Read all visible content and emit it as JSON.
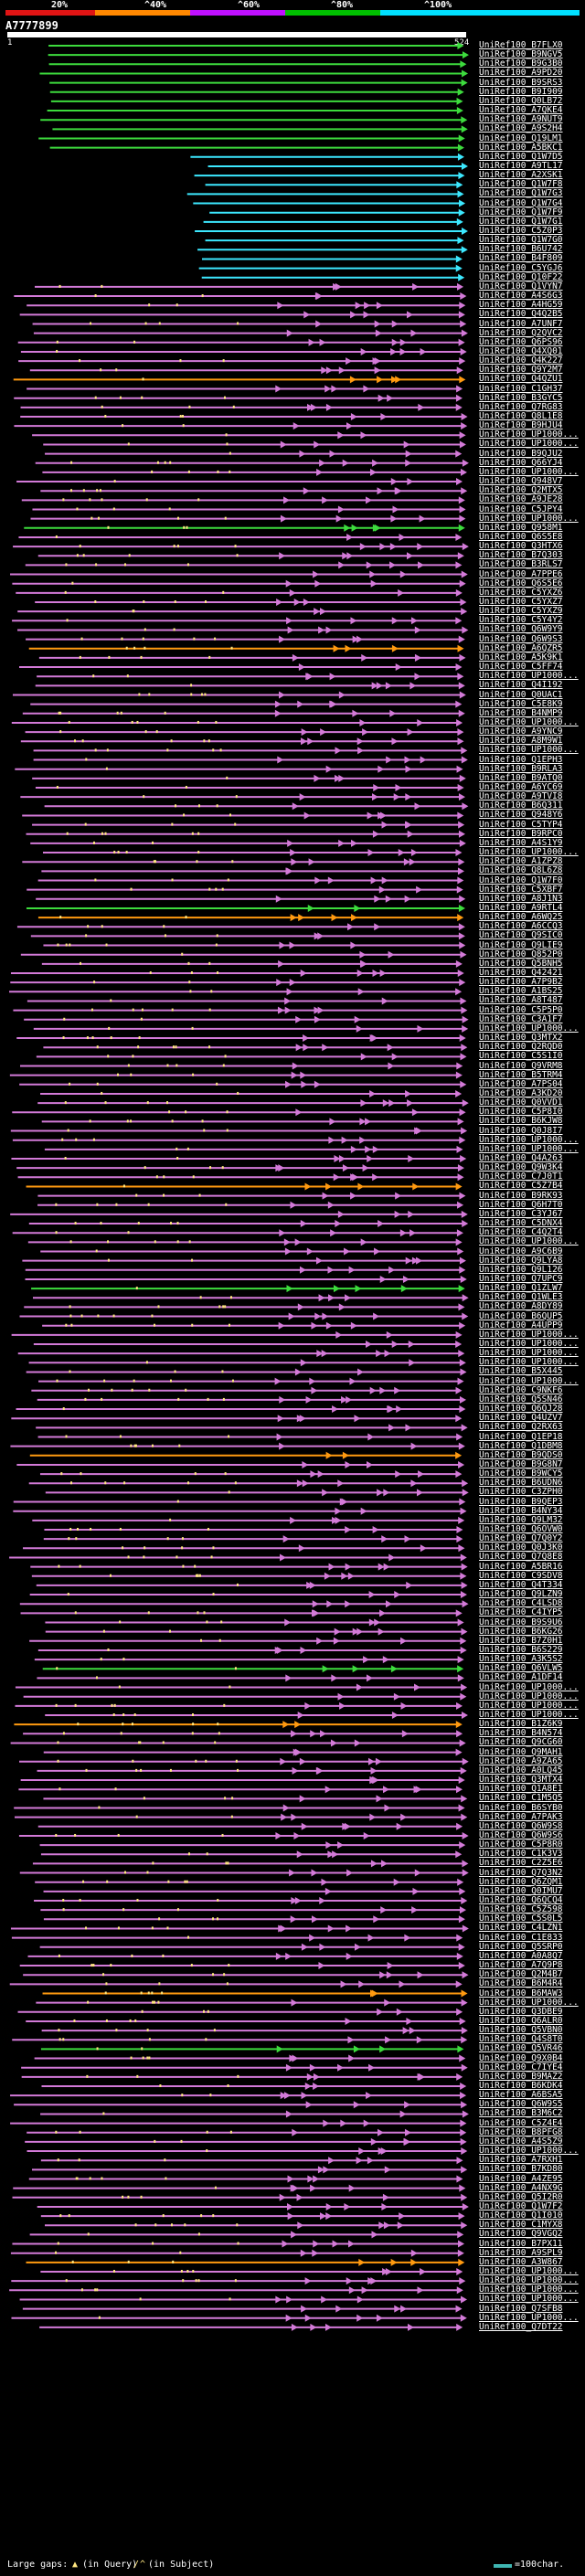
{
  "legend": {
    "percent_labels": [
      "20%",
      "^40%",
      "^60%",
      "^80%",
      "^100%"
    ],
    "colors": [
      "#e01414",
      "#ff8800",
      "#c010ff",
      "#00c000",
      "#00e0ff"
    ]
  },
  "query": {
    "id": "A7777899",
    "start": "1",
    "end": "524"
  },
  "hit_colors": {
    "cyan": "#3ce8ff",
    "green": "#3ddb3d",
    "purple": "#d37ad8",
    "orange": "#ff9a10",
    "dot": "#ffe680"
  },
  "hits": [
    "UniRef100_B7FLX0",
    "UniRef100_B9NGV5",
    "UniRef100_B9G3B0",
    "UniRef100_A9PD20",
    "UniRef100_B9SRS3",
    "UniRef100_B9I909",
    "UniRef100_Q0LB72",
    "UniRef100_A7QKE4",
    "UniRef100_A9NUT9",
    "UniRef100_A9S2H4",
    "UniRef100_Q19LM1",
    "UniRef100_A5BKC1",
    "UniRef100_Q1W7D5",
    "UniRef100_A9TL17",
    "UniRef100_A2XSK1",
    "UniRef100_Q1W7F8",
    "UniRef100_Q1W7G3",
    "UniRef100_Q1W7G4",
    "UniRef100_Q1W7F9",
    "UniRef100_Q1W7G1",
    "UniRef100_C5Z0P3",
    "UniRef100_Q1W7G0",
    "UniRef100_B6U742",
    "UniRef100_B4F809",
    "UniRef100_C5YGJ6",
    "UniRef100_Q10F22",
    "UniRef100_Q1VYN7",
    "UniRef100_A4S6G3",
    "UniRef100_A4HG59",
    "UniRef100_Q4Q2B5",
    "UniRef100_A7UNF7",
    "UniRef100_Q2QVC2",
    "UniRef100_Q6PS96",
    "UniRef100_Q4XQ01",
    "UniRef100_Q4K227",
    "UniRef100_Q9Y2M7",
    "UniRef100_Q4QZU1",
    "UniRef100_C1GH37",
    "UniRef100_B3GYC5",
    "UniRef100_Q7RG83",
    "UniRef100_Q8L1E8",
    "UniRef100_B9HJU4",
    "UniRef100_UP1000...",
    "UniRef100_UP1000...",
    "UniRef100_B9QJU2",
    "UniRef100_Q66YJ4",
    "UniRef100_UP1000...",
    "UniRef100_Q948V7",
    "UniRef100_Q2MTX5",
    "UniRef100_A9JE28",
    "UniRef100_C5JPY4",
    "UniRef100_UP1000...",
    "UniRef100_Q958M1",
    "UniRef100_Q6S5E8",
    "UniRef100_Q3HTX6",
    "UniRef100_B7Q303",
    "UniRef100_B3RLS7",
    "UniRef100_A7PPE6",
    "UniRef100_Q6S5E6",
    "UniRef100_C5YXZ6",
    "UniRef100_C5YXZ7",
    "UniRef100_C5YXZ9",
    "UniRef100_C5Y4Y2",
    "UniRef100_Q6W9Y9",
    "UniRef100_Q6W9S3",
    "UniRef100_A6QZR5",
    "UniRef100_A5K9K1",
    "UniRef100_C5FF74",
    "UniRef100_UP1000...",
    "UniRef100_Q4I192",
    "UniRef100_Q0UAC1",
    "UniRef100_C5E8K9",
    "UniRef100_B4NMP9",
    "UniRef100_UP1000...",
    "UniRef100_A9YNC9",
    "UniRef100_A8M9W1",
    "UniRef100_UP1000...",
    "UniRef100_Q1EPH3",
    "UniRef100_B9RLA3",
    "UniRef100_B9ATQ0",
    "UniRef100_A6YC69",
    "UniRef100_A9TVI8",
    "UniRef100_B6Q311",
    "UniRef100_Q948Y6",
    "UniRef100_C5TYP4",
    "UniRef100_B9RPC0",
    "UniRef100_A4S1Y9",
    "UniRef100_UP1000...",
    "UniRef100_A1ZPZ8",
    "UniRef100_Q8L6Z8",
    "UniRef100_Q1W7F0",
    "UniRef100_C5XBF7",
    "UniRef100_A8J1N3",
    "UniRef100_A9RTL4",
    "UniRef100_A6WQ25",
    "UniRef100_A6CCQ3",
    "UniRef100_Q9SIC0",
    "UniRef100_Q9LIE9",
    "UniRef100_Q852P0",
    "UniRef100_Q5BNH5",
    "UniRef100_Q42421",
    "UniRef100_A7P9B2",
    "UniRef100_A1BS25",
    "UniRef100_A8T487",
    "UniRef100_C5P5P0",
    "UniRef100_C3A1F7",
    "UniRef100_UP1000...",
    "UniRef100_Q3MTX2",
    "UniRef100_Q2RQD0",
    "UniRef100_C5S1I0",
    "UniRef100_Q9VRM8",
    "UniRef100_B5TRM4",
    "UniRef100_A7PS04",
    "UniRef100_A3KD20",
    "UniRef100_Q0VVD1",
    "UniRef100_C5P8I0",
    "UniRef100_B6KJW8",
    "UniRef100_Q0J8I7",
    "UniRef100_UP1000...",
    "UniRef100_UP1000...",
    "UniRef100_Q4A263",
    "UniRef100_Q9W3K4",
    "UniRef100_C7J0T1",
    "UniRef100_C5Z7B4",
    "UniRef100_B9RK93",
    "UniRef100_Q6H7T0",
    "UniRef100_C3YJ67",
    "UniRef100_C5DNX4",
    "UniRef100_C4Q2T4",
    "UniRef100_UP1000...",
    "UniRef100_A9C6B9",
    "UniRef100_Q9LYA8",
    "UniRef100_Q9L126",
    "UniRef100_Q7UPC9",
    "UniRef100_Q1ZLW7",
    "UniRef100_Q1WLE3",
    "UniRef100_A8DY89",
    "UniRef100_B6QUP5",
    "UniRef100_A4UPP9",
    "UniRef100_UP1000...",
    "UniRef100_UP1000...",
    "UniRef100_UP1000...",
    "UniRef100_UP1000...",
    "UniRef100_B5X445",
    "UniRef100_UP1000...",
    "UniRef100_C9NKF6",
    "UniRef100_Q5SN46",
    "UniRef100_Q6QJ28",
    "UniRef100_Q4UZV7",
    "UniRef100_Q2RX63",
    "UniRef100_Q1EP18",
    "UniRef100_Q1DBM8",
    "UniRef100_B9QDS0",
    "UniRef100_B9G8N7",
    "UniRef100_B9WCY5",
    "UniRef100_B6UDN6",
    "UniRef100_C3ZPH0",
    "UniRef100_B9QEP3",
    "UniRef100_B4NY34",
    "UniRef100_Q9LM32",
    "UniRef100_Q6OVW0",
    "UniRef100_Q7Q0Y2",
    "UniRef100_Q0J3K0",
    "UniRef100_Q7Q8E8",
    "UniRef100_A5BR16",
    "UniRef100_C9SDV8",
    "UniRef100_Q4T334",
    "UniRef100_Q9LZN9",
    "UniRef100_C4LSD8",
    "UniRef100_C4IYP5",
    "UniRef100_B9S9U6",
    "UniRef100_B6KG26",
    "UniRef100_B7Z0H1",
    "UniRef100_B6S229",
    "UniRef100_A3K5S2",
    "UniRef100_Q6VLW5",
    "UniRef100_A1DF14",
    "UniRef100_UP1000...",
    "UniRef100_UP1000...",
    "UniRef100_UP1000...",
    "UniRef100_UP1000...",
    "UniRef100_B1Z6K9",
    "UniRef100_B4N574",
    "UniRef100_Q9CG60",
    "UniRef100_Q9MAH1",
    "UniRef100_A9ZA65",
    "UniRef100_A0LQ45",
    "UniRef100_Q3MTX4",
    "UniRef100_Q1A8E1",
    "UniRef100_C1M5Q5",
    "UniRef100_B6SYB0",
    "UniRef100_A7PAK3",
    "UniRef100_Q6W9S8",
    "UniRef100_Q6W9S6",
    "UniRef100_C5P8R0",
    "UniRef100_C1K3V3",
    "UniRef100_C2Z5E6",
    "UniRef100_Q7Q3N2",
    "UniRef100_Q6ZQM1",
    "UniRef100_Q0IMU7",
    "UniRef100_Q6QCQ4",
    "UniRef100_C5Z598",
    "UniRef100_C5S0L5",
    "UniRef100_C4LZN1",
    "UniRef100_C1E833",
    "UniRef100_Q5SRP0",
    "UniRef100_A0A8Q7",
    "UniRef100_A7Q9P8",
    "UniRef100_Q2M4B7",
    "UniRef100_B6M4R4",
    "UniRef100_B6MAW3",
    "UniRef100_UP1000...",
    "UniRef100_Q3DBE9",
    "UniRef100_Q6ALR0",
    "UniRef100_Q5VBN0",
    "UniRef100_Q4S8T0",
    "UniRef100_Q5VR46",
    "UniRef100_Q9X0B4",
    "UniRef100_C7IYE4",
    "UniRef100_B9MAZ2",
    "UniRef100_B6KDK4",
    "UniRef100_A6BSA5",
    "UniRef100_Q6W9S5",
    "UniRef100_B3M6C2",
    "UniRef100_C5Z4E4",
    "UniRef100_B8PFG8",
    "UniRef100_A4S5Z9",
    "UniRef100_UP1000...",
    "UniRef100_A7RXH1",
    "UniRef100_B7KD80",
    "UniRef100_A4ZE95",
    "UniRef100_A4NX9G",
    "UniRef100_Q5I2R0",
    "UniRef100_Q1W7F2",
    "UniRef100_Q1I010",
    "UniRef100_C1MYX8",
    "UniRef100_Q9VGQ2",
    "UniRef100_B7PX11",
    "UniRef100_A9SPL9",
    "UniRef100_A3W867",
    "UniRef100_UP1000...",
    "UniRef100_UP1000...",
    "UniRef100_UP1000...",
    "UniRef100_UP1000...",
    "UniRef100_Q7SFB8",
    "UniRef100_UP1000...",
    "UniRef100_Q7DT22"
  ],
  "bottom_legend": {
    "large_gaps": "Large gaps:",
    "in_query": "(in Query)",
    "in_subject": "(in Subject)",
    "scale": "=100char."
  }
}
